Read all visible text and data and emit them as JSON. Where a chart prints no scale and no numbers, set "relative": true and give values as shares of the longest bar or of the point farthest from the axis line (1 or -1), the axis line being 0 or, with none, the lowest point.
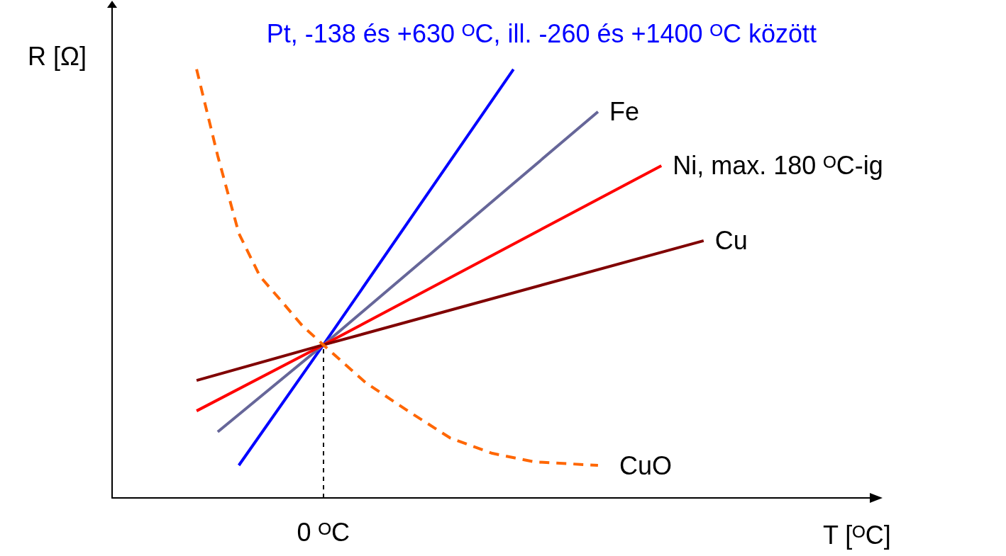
{
  "chart_data": {
    "type": "line",
    "relative": true,
    "xlabel": "T [ᴼC]",
    "ylabel": "R [Ω]",
    "marker": "none",
    "legend": false,
    "grid": false,
    "categories": [
      null,
      null,
      null,
      null,
      null,
      null,
      null,
      null,
      null,
      null,
      null,
      null,
      null,
      null,
      null,
      null,
      null,
      null,
      null,
      null,
      null,
      null,
      null,
      null,
      null,
      null,
      null,
      null,
      null,
      null,
      null,
      null,
      null,
      null,
      null,
      null,
      null
    ],
    "annotations": [
      "0 ᴼC"
    ],
    "series": [
      {
        "name": "Pt, -138 és +630 ᴼC, ill. -260 és +1400 ᴼC között",
        "color": "#0000ff",
        "line_style": "solid",
        "values": [
          null,
          null,
          null,
          null,
          null,
          null,
          0.076,
          null,
          null,
          null,
          0.357,
          null,
          null,
          null,
          null,
          null,
          null,
          null,
          null,
          1,
          null,
          null,
          null,
          null,
          null,
          null,
          null,
          null,
          null,
          null,
          null,
          null,
          null,
          null,
          null,
          null,
          null
        ]
      },
      {
        "name": "Fe",
        "color": "#666699",
        "line_style": "solid",
        "values": [
          null,
          null,
          null,
          null,
          null,
          0.154,
          null,
          null,
          null,
          null,
          0.357,
          null,
          null,
          null,
          null,
          null,
          null,
          null,
          null,
          null,
          null,
          null,
          null,
          0.901,
          null,
          null,
          null,
          null,
          null,
          null,
          null,
          null,
          null,
          null,
          null,
          null,
          null
        ]
      },
      {
        "name": "Ni, max. 180 ᴼC-ig",
        "color": "#ff0000",
        "line_style": "solid",
        "values": [
          null,
          null,
          null,
          null,
          0.203,
          null,
          null,
          null,
          null,
          null,
          0.357,
          null,
          null,
          null,
          null,
          null,
          null,
          null,
          null,
          null,
          null,
          null,
          null,
          null,
          null,
          null,
          0.775,
          null,
          null,
          null,
          null,
          null,
          null,
          null,
          null,
          null,
          null
        ]
      },
      {
        "name": "Cu",
        "color": "#800000",
        "line_style": "solid",
        "values": [
          null,
          null,
          null,
          null,
          0.274,
          null,
          null,
          null,
          null,
          null,
          0.357,
          null,
          null,
          null,
          null,
          null,
          null,
          null,
          null,
          null,
          null,
          null,
          null,
          null,
          null,
          null,
          null,
          null,
          0.6,
          null,
          null,
          null,
          null,
          null,
          null,
          null,
          null
        ]
      },
      {
        "name": "CuO",
        "color": "#ff6600",
        "line_style": "dashed",
        "values": [
          null,
          null,
          null,
          null,
          1,
          0.798,
          0.617,
          0.517,
          0.46,
          0.402,
          0.357,
          null,
          0.269,
          null,
          0.203,
          null,
          0.14,
          null,
          0.104,
          null,
          0.084,
          null,
          null,
          0.076,
          null,
          null,
          null,
          null,
          null,
          null,
          null,
          null,
          null,
          null,
          null,
          null,
          null
        ]
      }
    ]
  }
}
